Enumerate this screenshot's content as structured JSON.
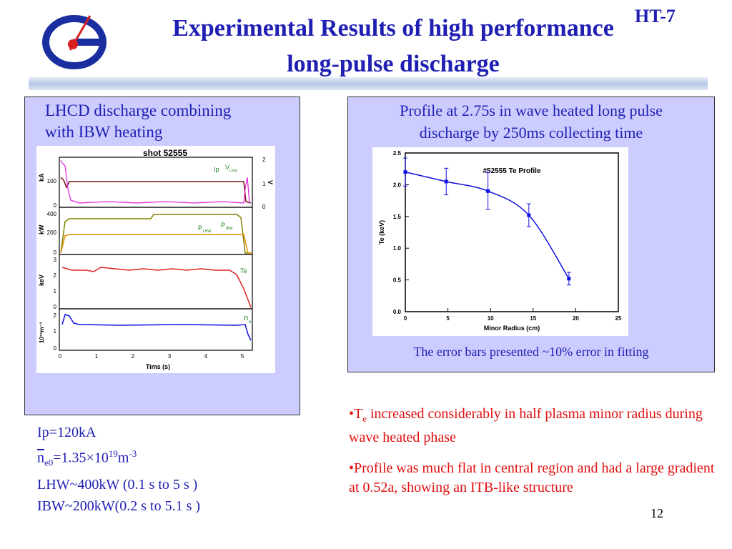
{
  "header": {
    "title_line1": "Experimental  Results of high performance",
    "title_line2": "long-pulse  discharge",
    "tag": "HT-7",
    "logo_icon": "institute-logo-icon"
  },
  "left_panel": {
    "caption_line1": "LHCD discharge combining",
    "caption_line2": "with IBW heating",
    "figure": {
      "title": "shot 52555",
      "xlabel": "Tims (s)",
      "x_ticks": [
        "0",
        "1",
        "2",
        "3",
        "4",
        "5"
      ],
      "panels": [
        {
          "ylabel": "kA",
          "y_ticks": [
            "100",
            "0"
          ],
          "right_ticks": [
            "2",
            "1",
            "0"
          ],
          "right_label": "V",
          "labels": [
            "Ip",
            "V"
          ],
          "label_sub": "Loop"
        },
        {
          "ylabel": "kW",
          "y_ticks": [
            "400",
            "200",
            "0"
          ],
          "labels": [
            "P",
            "P"
          ],
          "label_subs": [
            "LHW",
            "IBW"
          ]
        },
        {
          "ylabel": "keV",
          "y_ticks": [
            "3",
            "2",
            "1",
            "0"
          ],
          "labels": [
            "Te"
          ]
        },
        {
          "ylabel": "10¹⁹m⁻³",
          "y_ticks": [
            "2",
            "1",
            "0"
          ],
          "labels": [
            "n"
          ],
          "label_sub": "e"
        }
      ]
    }
  },
  "params": {
    "ip": "Ip=120kA",
    "ne_a": "n",
    "ne_sub": "e0",
    "ne_b": "=1.35×10",
    "ne_sup": "19",
    "ne_c": "m",
    "ne_sup2": "-3",
    "lhw": "LHW~400kW (0.1 s to 5 s )",
    "ibw": "IBW~200kW(0.2 s to 5.1 s )"
  },
  "right_panel": {
    "caption_line1": "Profile at 2.75s in wave heated long pulse",
    "caption_line2": "discharge by 250ms collecting time",
    "note": "The error bars presented ~10% error in fitting"
  },
  "chart_data": {
    "type": "scatter",
    "title": "#52555 Te Profile",
    "xlabel": "Minor Radius (cm)",
    "ylabel": "Te (keV)",
    "xlim": [
      0,
      25
    ],
    "ylim": [
      0,
      2.5
    ],
    "x_ticks": [
      "0",
      "5",
      "10",
      "15",
      "20",
      "25"
    ],
    "y_ticks": [
      "0.0",
      "0.5",
      "1.0",
      "1.5",
      "2.0",
      "2.5"
    ],
    "x": [
      0,
      4.8,
      9.7,
      14.5,
      19.2
    ],
    "y": [
      2.2,
      2.05,
      1.9,
      1.52,
      0.52
    ],
    "errors": [
      0.22,
      0.21,
      0.29,
      0.18,
      0.1
    ],
    "grid": false,
    "color": "#1010e0"
  },
  "bullets": {
    "b1_a": "•T",
    "b1_sub": "e",
    "b1_b": " increased considerably  in half plasma minor radius during wave heated phase",
    "b2": "•Profile was much flat in central region and  had a large gradient at 0.52a, showing an ITB-like structure"
  },
  "page_number": "12"
}
